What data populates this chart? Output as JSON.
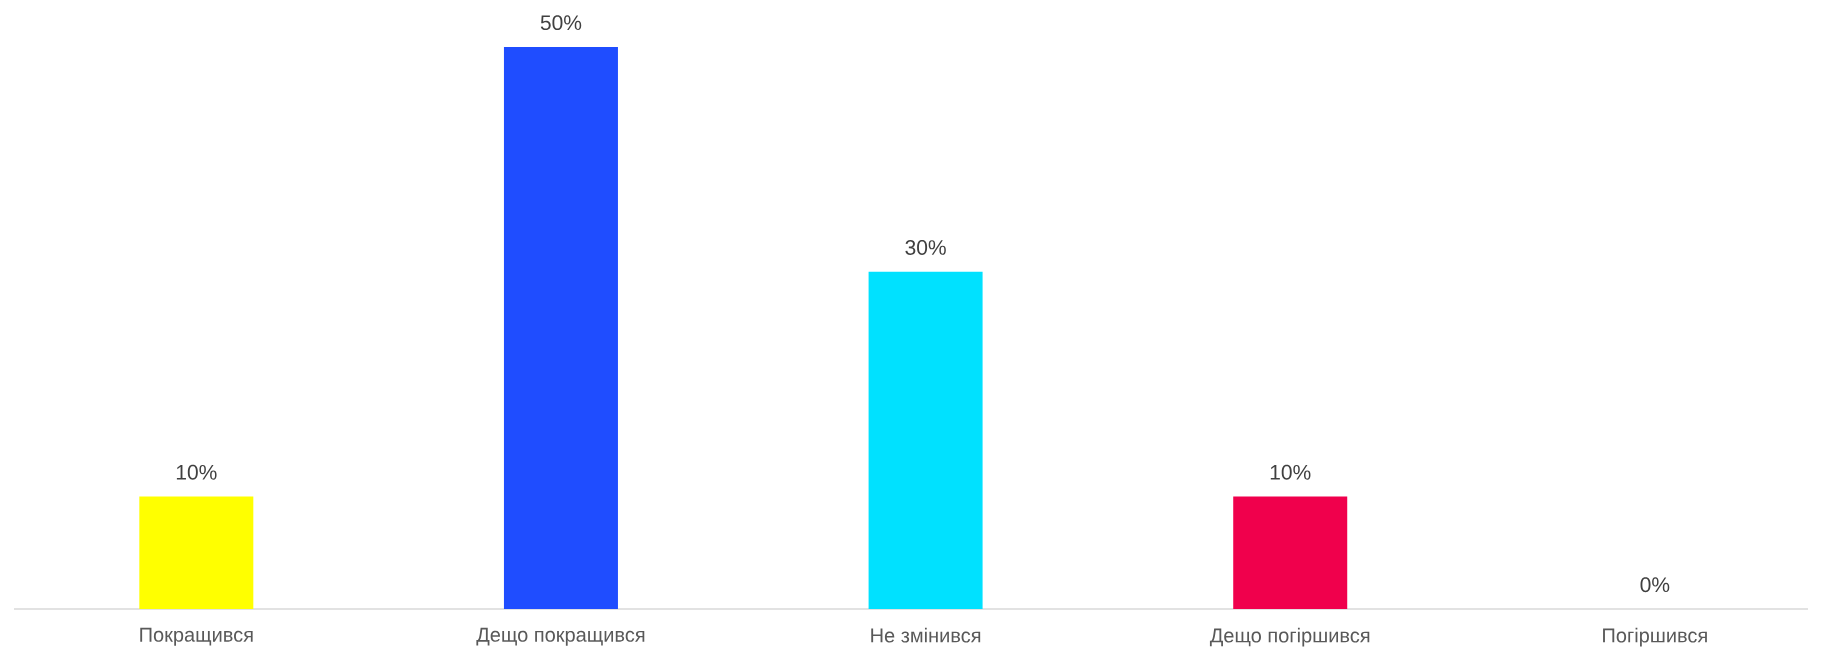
{
  "chart_data": {
    "type": "bar",
    "categories": [
      "Покращився",
      "Дещо покращився",
      "Не змінився",
      "Дещо погіршився",
      "Погіршився"
    ],
    "values": [
      10,
      50,
      30,
      10,
      0
    ],
    "value_labels": [
      "10%",
      "50%",
      "30%",
      "10%",
      "0%"
    ],
    "colors": [
      "#ffff00",
      "#1f4dff",
      "#00e1ff",
      "#f0004c",
      "#a6a6a6"
    ]
  }
}
